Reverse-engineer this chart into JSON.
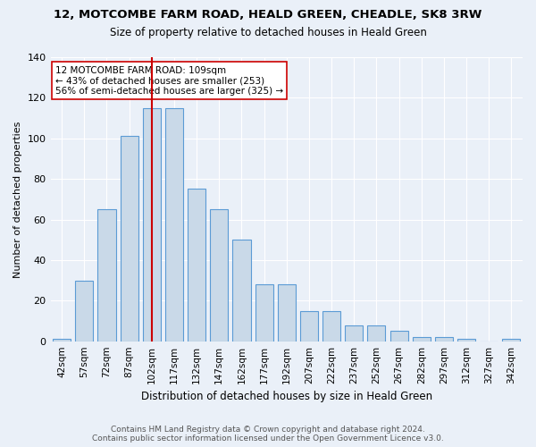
{
  "title_line1": "12, MOTCOMBE FARM ROAD, HEALD GREEN, CHEADLE, SK8 3RW",
  "title_line2": "Size of property relative to detached houses in Heald Green",
  "xlabel": "Distribution of detached houses by size in Heald Green",
  "ylabel": "Number of detached properties",
  "categories": [
    "42sqm",
    "57sqm",
    "72sqm",
    "87sqm",
    "102sqm",
    "117sqm",
    "132sqm",
    "147sqm",
    "162sqm",
    "177sqm",
    "192sqm",
    "207sqm",
    "222sqm",
    "237sqm",
    "252sqm",
    "267sqm",
    "282sqm",
    "297sqm",
    "312sqm",
    "327sqm",
    "342sqm"
  ],
  "values": [
    1,
    30,
    65,
    101,
    115,
    115,
    75,
    65,
    50,
    28,
    28,
    15,
    15,
    8,
    8,
    5,
    2,
    2,
    1,
    0,
    1
  ],
  "bar_color": "#c9d9e8",
  "bar_edge_color": "#5b9bd5",
  "vline_x": 4,
  "vline_color": "#cc0000",
  "annotation_text": "12 MOTCOMBE FARM ROAD: 109sqm\n← 43% of detached houses are smaller (253)\n56% of semi-detached houses are larger (325) →",
  "annotation_box_color": "#ffffff",
  "annotation_box_edge": "#cc0000",
  "ylim": [
    0,
    140
  ],
  "yticks": [
    0,
    20,
    40,
    60,
    80,
    100,
    120,
    140
  ],
  "footer_line1": "Contains HM Land Registry data © Crown copyright and database right 2024.",
  "footer_line2": "Contains public sector information licensed under the Open Government Licence v3.0.",
  "bg_color": "#eaf0f8",
  "plot_bg_color": "#eaf0f8",
  "grid_color": "#ffffff",
  "bin_width": 0.8
}
